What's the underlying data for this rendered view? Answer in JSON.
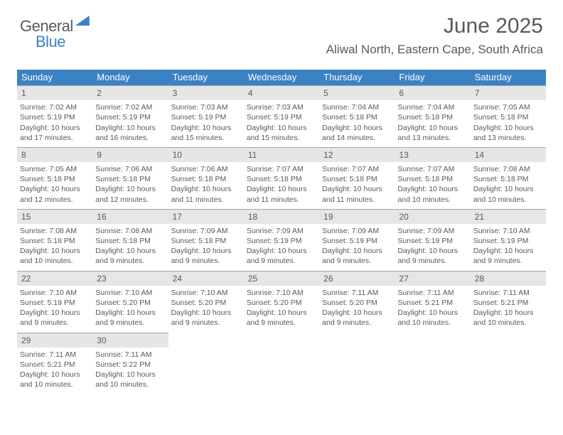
{
  "logo": {
    "part1": "General",
    "part2": "Blue"
  },
  "title": "June 2025",
  "location": "Aliwal North, Eastern Cape, South Africa",
  "colors": {
    "header_bar": "#3b82c4",
    "daynum_bg": "#e6e6e6",
    "daynum_border": "#a6a6a6",
    "text": "#595959",
    "white": "#ffffff"
  },
  "day_names": [
    "Sunday",
    "Monday",
    "Tuesday",
    "Wednesday",
    "Thursday",
    "Friday",
    "Saturday"
  ],
  "weeks": [
    [
      {
        "n": "1",
        "sr": "7:02 AM",
        "ss": "5:19 PM",
        "dl": "10 hours and 17 minutes."
      },
      {
        "n": "2",
        "sr": "7:02 AM",
        "ss": "5:19 PM",
        "dl": "10 hours and 16 minutes."
      },
      {
        "n": "3",
        "sr": "7:03 AM",
        "ss": "5:19 PM",
        "dl": "10 hours and 15 minutes."
      },
      {
        "n": "4",
        "sr": "7:03 AM",
        "ss": "5:19 PM",
        "dl": "10 hours and 15 minutes."
      },
      {
        "n": "5",
        "sr": "7:04 AM",
        "ss": "5:18 PM",
        "dl": "10 hours and 14 minutes."
      },
      {
        "n": "6",
        "sr": "7:04 AM",
        "ss": "5:18 PM",
        "dl": "10 hours and 13 minutes."
      },
      {
        "n": "7",
        "sr": "7:05 AM",
        "ss": "5:18 PM",
        "dl": "10 hours and 13 minutes."
      }
    ],
    [
      {
        "n": "8",
        "sr": "7:05 AM",
        "ss": "5:18 PM",
        "dl": "10 hours and 12 minutes."
      },
      {
        "n": "9",
        "sr": "7:06 AM",
        "ss": "5:18 PM",
        "dl": "10 hours and 12 minutes."
      },
      {
        "n": "10",
        "sr": "7:06 AM",
        "ss": "5:18 PM",
        "dl": "10 hours and 11 minutes."
      },
      {
        "n": "11",
        "sr": "7:07 AM",
        "ss": "5:18 PM",
        "dl": "10 hours and 11 minutes."
      },
      {
        "n": "12",
        "sr": "7:07 AM",
        "ss": "5:18 PM",
        "dl": "10 hours and 11 minutes."
      },
      {
        "n": "13",
        "sr": "7:07 AM",
        "ss": "5:18 PM",
        "dl": "10 hours and 10 minutes."
      },
      {
        "n": "14",
        "sr": "7:08 AM",
        "ss": "5:18 PM",
        "dl": "10 hours and 10 minutes."
      }
    ],
    [
      {
        "n": "15",
        "sr": "7:08 AM",
        "ss": "5:18 PM",
        "dl": "10 hours and 10 minutes."
      },
      {
        "n": "16",
        "sr": "7:08 AM",
        "ss": "5:18 PM",
        "dl": "10 hours and 9 minutes."
      },
      {
        "n": "17",
        "sr": "7:09 AM",
        "ss": "5:18 PM",
        "dl": "10 hours and 9 minutes."
      },
      {
        "n": "18",
        "sr": "7:09 AM",
        "ss": "5:19 PM",
        "dl": "10 hours and 9 minutes."
      },
      {
        "n": "19",
        "sr": "7:09 AM",
        "ss": "5:19 PM",
        "dl": "10 hours and 9 minutes."
      },
      {
        "n": "20",
        "sr": "7:09 AM",
        "ss": "5:19 PM",
        "dl": "10 hours and 9 minutes."
      },
      {
        "n": "21",
        "sr": "7:10 AM",
        "ss": "5:19 PM",
        "dl": "10 hours and 9 minutes."
      }
    ],
    [
      {
        "n": "22",
        "sr": "7:10 AM",
        "ss": "5:19 PM",
        "dl": "10 hours and 9 minutes."
      },
      {
        "n": "23",
        "sr": "7:10 AM",
        "ss": "5:20 PM",
        "dl": "10 hours and 9 minutes."
      },
      {
        "n": "24",
        "sr": "7:10 AM",
        "ss": "5:20 PM",
        "dl": "10 hours and 9 minutes."
      },
      {
        "n": "25",
        "sr": "7:10 AM",
        "ss": "5:20 PM",
        "dl": "10 hours and 9 minutes."
      },
      {
        "n": "26",
        "sr": "7:11 AM",
        "ss": "5:20 PM",
        "dl": "10 hours and 9 minutes."
      },
      {
        "n": "27",
        "sr": "7:11 AM",
        "ss": "5:21 PM",
        "dl": "10 hours and 10 minutes."
      },
      {
        "n": "28",
        "sr": "7:11 AM",
        "ss": "5:21 PM",
        "dl": "10 hours and 10 minutes."
      }
    ],
    [
      {
        "n": "29",
        "sr": "7:11 AM",
        "ss": "5:21 PM",
        "dl": "10 hours and 10 minutes."
      },
      {
        "n": "30",
        "sr": "7:11 AM",
        "ss": "5:22 PM",
        "dl": "10 hours and 10 minutes."
      },
      null,
      null,
      null,
      null,
      null
    ]
  ],
  "labels": {
    "sunrise": "Sunrise: ",
    "sunset": "Sunset: ",
    "daylight": "Daylight: "
  }
}
